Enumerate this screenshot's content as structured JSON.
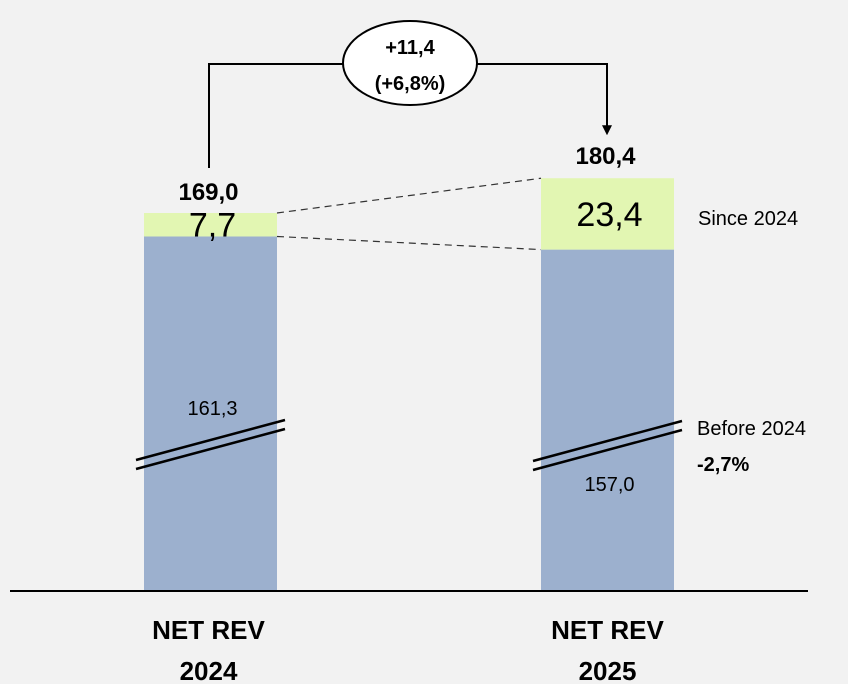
{
  "chart_data": {
    "type": "bar",
    "stacked": true,
    "broken_axis": true,
    "categories": [
      {
        "line1": "NET REV",
        "line2": "2024"
      },
      {
        "line1": "NET REV",
        "line2": "2025"
      }
    ],
    "series": [
      {
        "name": "Before 2024",
        "values": [
          161.3,
          157.0
        ],
        "value_labels": [
          "161,3",
          "157,0"
        ],
        "color": "#9cb0ce"
      },
      {
        "name": "Since 2024",
        "values": [
          7.7,
          23.4
        ],
        "value_labels": [
          "7,7",
          "23,4"
        ],
        "color": "#e2f6b2"
      }
    ],
    "totals": [
      169.0,
      180.4
    ],
    "total_labels": [
      "169,0",
      "180,4"
    ],
    "change": {
      "value_label": "+11,4",
      "percent_label": "(+6,8%)"
    },
    "before_change_label": "-2,7%",
    "legend_placement": "right of second bar",
    "grid": false,
    "colors": {
      "background": "#f2f2f2",
      "before": "#9cb0ce",
      "since": "#e2f6b2",
      "axis": "#000000"
    }
  }
}
